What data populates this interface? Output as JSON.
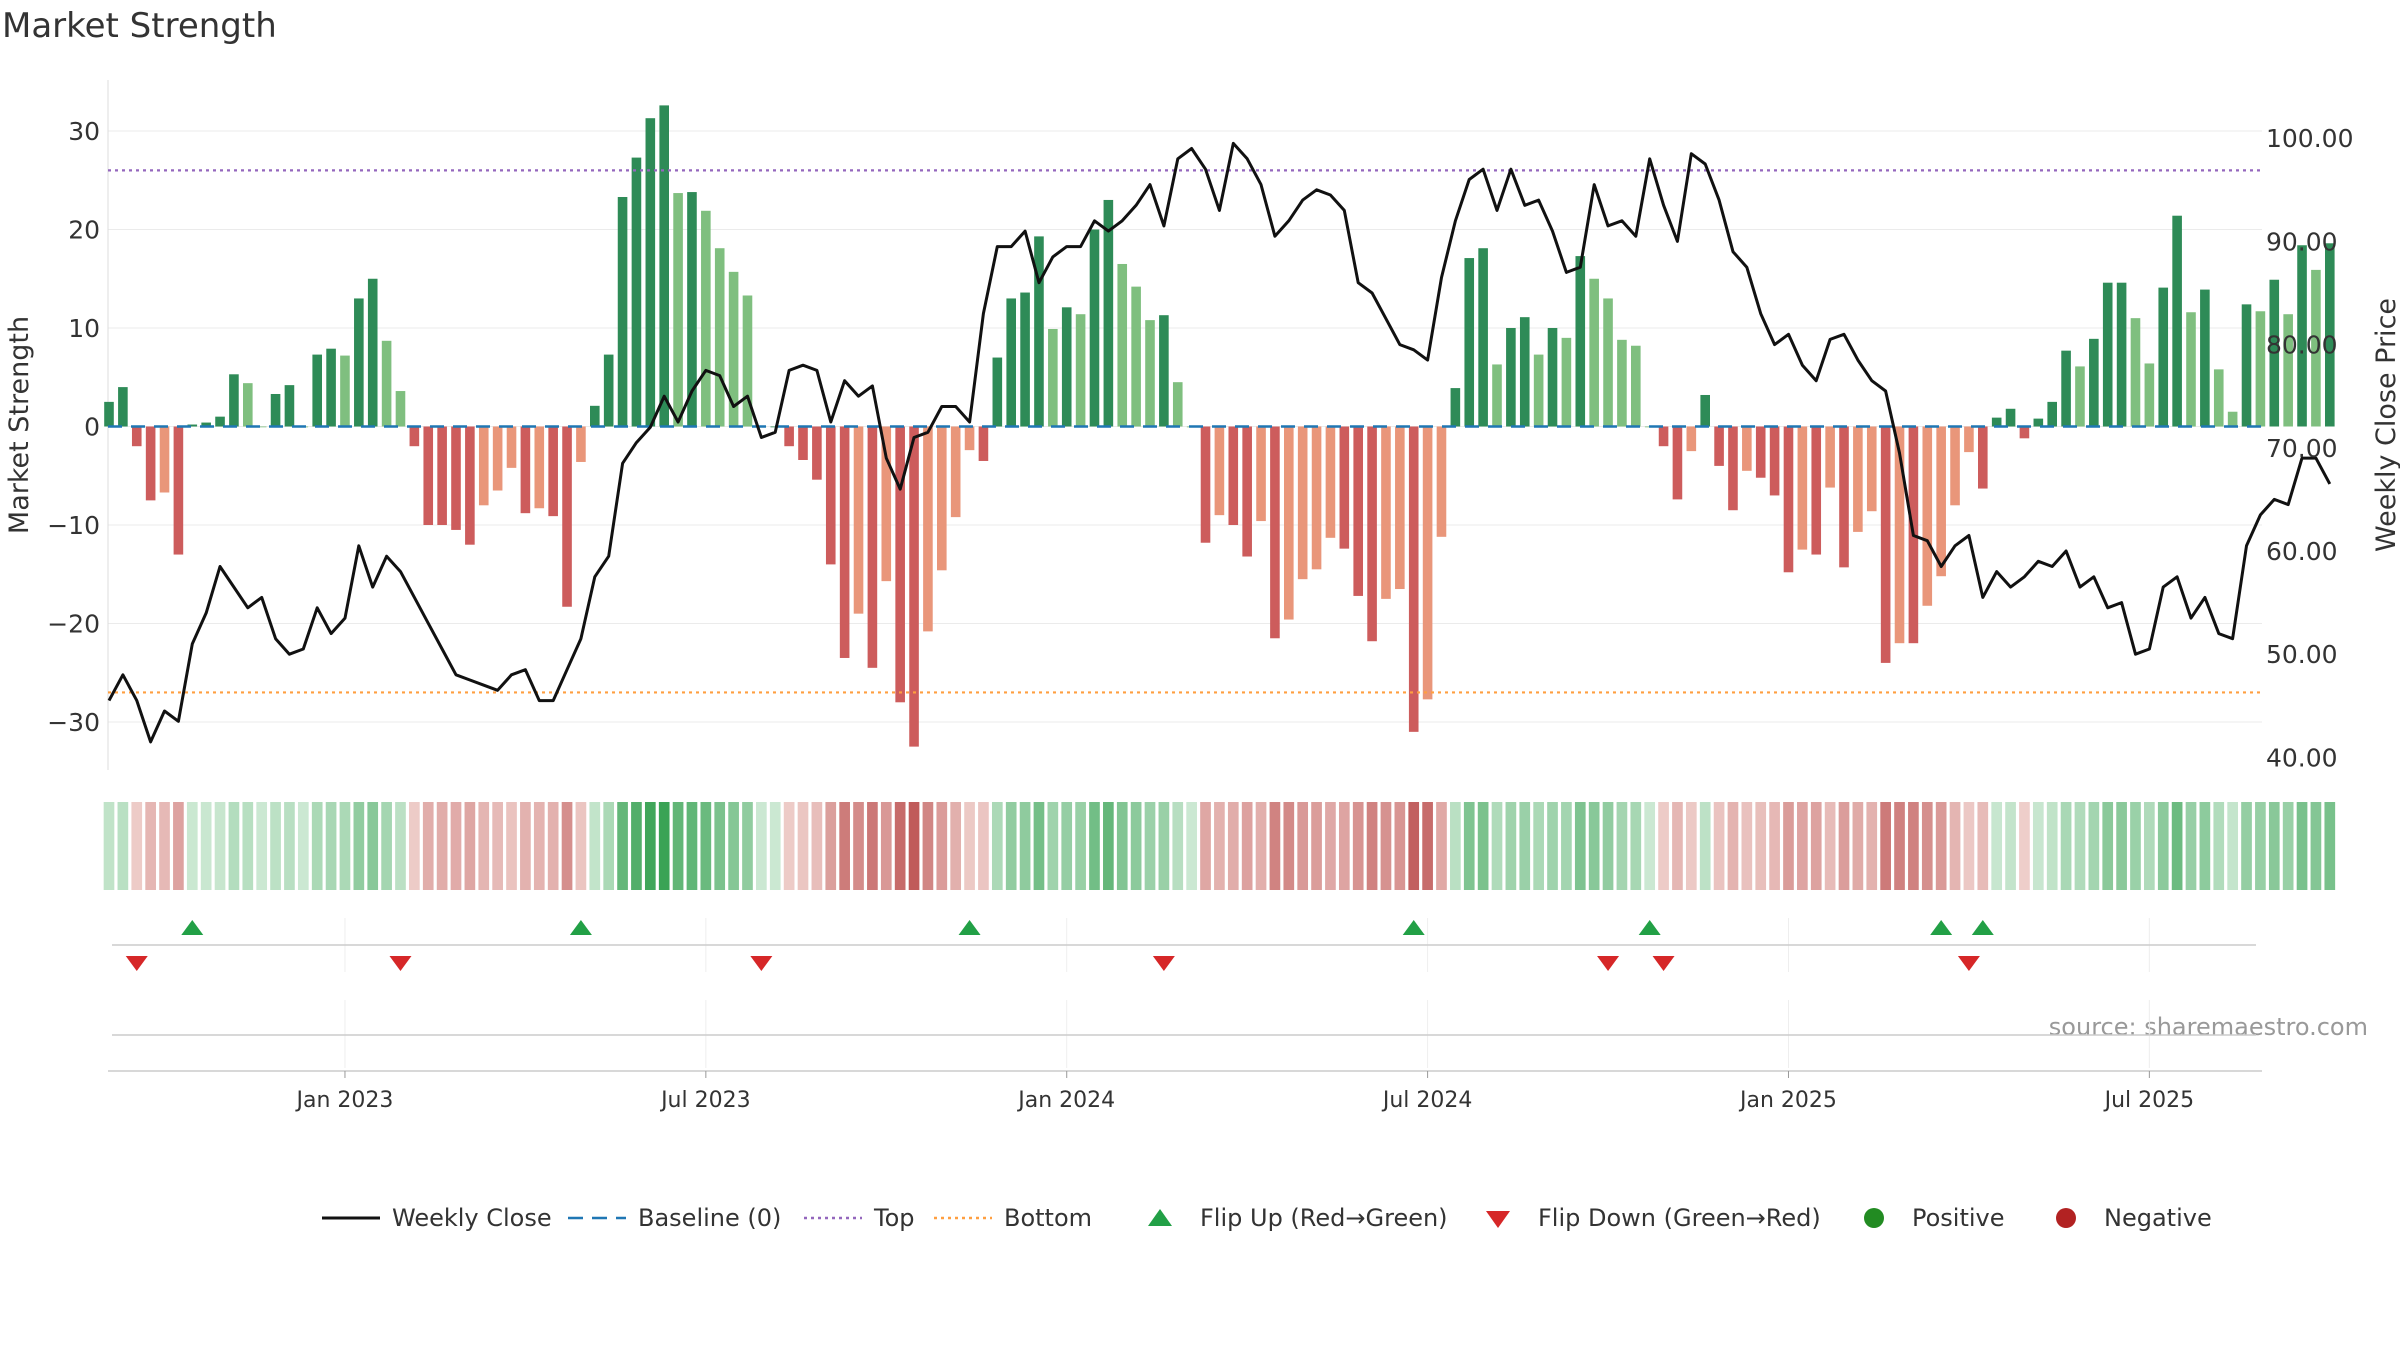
{
  "chart_data": {
    "type": "bar+line",
    "title": "Market Strength",
    "source": "source: sharemaestro.com",
    "y_left": {
      "label": "Market Strength",
      "ticks": [
        30,
        20,
        10,
        0,
        -10,
        -20,
        -30
      ],
      "tick_labels": [
        "30",
        "20",
        "10",
        "0",
        "−10",
        "−20",
        "−30"
      ],
      "range": [
        -35,
        35
      ]
    },
    "y_right": {
      "label": "Weekly Close Price",
      "ticks": [
        100,
        90,
        80,
        70,
        60,
        50,
        40
      ],
      "tick_labels": [
        "100.00",
        "90.00",
        "80.00",
        "70.00",
        "60.00",
        "50.00",
        "40.00"
      ],
      "range": [
        38.8,
        102.5
      ]
    },
    "x_ticks": [
      {
        "week": 17,
        "label": "Jan 2023"
      },
      {
        "week": 43,
        "label": "Jul 2023"
      },
      {
        "week": 69,
        "label": "Jan 2024"
      },
      {
        "week": 95,
        "label": "Jul 2024"
      },
      {
        "week": 121,
        "label": "Jan 2025"
      },
      {
        "week": 147,
        "label": "Jul 2025"
      }
    ],
    "reference_lines": {
      "top": 26,
      "bottom": -27,
      "baseline": 0
    },
    "strength": [
      2.5,
      4,
      -2,
      -7.5,
      -6.7,
      -13,
      0.2,
      0.4,
      1,
      5.3,
      4.4,
      0,
      3.3,
      4.2,
      0,
      7.3,
      7.9,
      7.2,
      13,
      15,
      8.7,
      3.6,
      -2,
      -10,
      -10,
      -10.5,
      -12,
      -8,
      -6.5,
      -4.2,
      -8.8,
      -8.3,
      -9.1,
      -18.3,
      -3.6,
      2.1,
      7.3,
      23.3,
      27.3,
      31.3,
      32.6,
      23.7,
      23.8,
      21.9,
      18.1,
      15.7,
      13.3,
      0,
      0,
      -2,
      -3.4,
      -5.4,
      -14,
      -23.5,
      -19,
      -24.5,
      -15.7,
      -28,
      -32.5,
      -20.8,
      -14.6,
      -9.2,
      -2.4,
      -3.5,
      7,
      13,
      13.6,
      19.3,
      9.9,
      12.1,
      11.4,
      20,
      23,
      16.5,
      14.2,
      10.8,
      11.3,
      4.5,
      0,
      -11.8,
      -9,
      -10,
      -13.2,
      -9.6,
      -21.5,
      -19.6,
      -15.5,
      -14.5,
      -11.3,
      -12.4,
      -17.2,
      -21.8,
      -17.5,
      -16.5,
      -31,
      -27.7,
      -11.2,
      3.9,
      17.1,
      18.1,
      6.3,
      10,
      11.1,
      7.3,
      10,
      9,
      17.3,
      15,
      13,
      8.8,
      8.2,
      0,
      -2,
      -7.4,
      -2.5,
      3.2,
      -4,
      -8.5,
      -4.5,
      -5.2,
      -7,
      -14.8,
      -12.5,
      -13,
      -6.2,
      -14.3,
      -10.7,
      -8.6,
      -24,
      -22,
      -22,
      -18.2,
      -15.2,
      -8,
      -2.6,
      -6.3,
      0.9,
      1.8,
      -1.2,
      0.8,
      2.5,
      7.7,
      6.1,
      8.9,
      14.6,
      14.6,
      11,
      6.4,
      14.1,
      21.4,
      11.6,
      13.9,
      5.8,
      1.5,
      12.4,
      11.7,
      14.9,
      11.4,
      18.4,
      15.9,
      18.6
    ],
    "close": [
      45.5,
      48,
      45.5,
      41.5,
      44.5,
      43.5,
      51,
      54,
      58.5,
      56.5,
      54.5,
      55.5,
      51.5,
      50,
      50.5,
      54.5,
      52,
      53.5,
      60.5,
      56.5,
      59.5,
      58,
      55.5,
      53,
      50.5,
      48,
      47.5,
      47,
      46.5,
      48,
      48.5,
      45.5,
      45.5,
      48.5,
      51.5,
      57.5,
      59.5,
      68.5,
      70.5,
      72,
      75,
      72.5,
      75.5,
      77.5,
      77,
      74,
      75,
      71,
      71.5,
      77.5,
      78,
      77.5,
      72.5,
      76.5,
      75,
      76,
      69,
      66,
      71,
      71.5,
      74,
      74,
      72.5,
      83,
      89.5,
      89.5,
      91,
      86,
      88.5,
      89.5,
      89.5,
      92,
      91,
      92,
      93.5,
      95.5,
      91.5,
      98,
      99,
      97,
      93,
      99.5,
      98,
      95.5,
      90.5,
      92,
      94,
      95,
      94.5,
      93,
      86,
      85,
      82.5,
      80,
      79.5,
      78.5,
      86.5,
      92,
      96,
      97,
      93,
      97,
      93.5,
      94,
      91,
      87,
      87.5,
      95.5,
      91.5,
      92,
      90.5,
      98,
      93.5,
      90,
      98.5,
      97.5,
      94,
      89,
      87.5,
      83,
      80,
      81,
      78,
      76.5,
      80.5,
      81,
      78.5,
      76.5,
      75.5,
      69.5,
      61.5,
      61,
      58.5,
      60.5,
      61.5,
      55.5,
      58,
      56.5,
      57.5,
      59,
      58.5,
      60,
      56.5,
      57.5,
      54.5,
      55,
      50,
      50.5,
      56.5,
      57.5,
      53.5,
      55.5,
      52,
      51.5,
      60.5,
      63.5,
      65,
      64.5,
      69,
      69,
      66.5
    ],
    "flips_up_weeks": [
      6,
      34,
      62,
      94,
      111,
      132,
      135
    ],
    "flips_down_weeks": [
      2,
      21,
      47,
      76,
      108,
      112,
      134
    ],
    "legend": [
      {
        "label": "Weekly Close",
        "color": "#111111",
        "kind": "line"
      },
      {
        "label": "Baseline (0)",
        "color": "#1f77b4",
        "kind": "dash"
      },
      {
        "label": "Top",
        "color": "#9467bd",
        "kind": "dot"
      },
      {
        "label": "Bottom",
        "color": "#ff9f40",
        "kind": "dot"
      },
      {
        "label": "Flip Up (Red→Green)",
        "color": "#22a046",
        "kind": "tri-up"
      },
      {
        "label": "Flip Down (Green→Red)",
        "color": "#d62728",
        "kind": "tri-down"
      },
      {
        "label": "Positive",
        "color": "#228b22",
        "kind": "circle"
      },
      {
        "label": "Negative",
        "color": "#b22222",
        "kind": "circle"
      }
    ]
  }
}
